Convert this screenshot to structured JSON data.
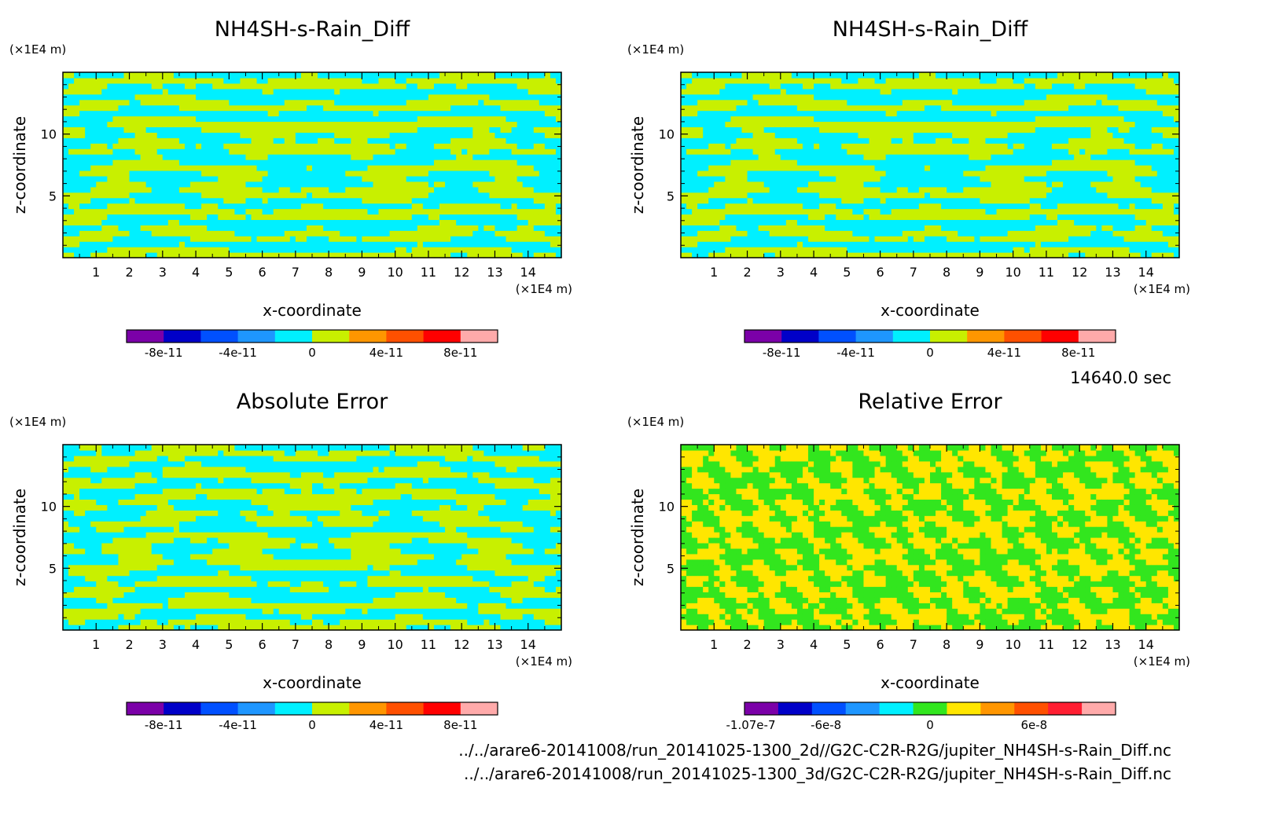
{
  "time_label": "14640.0 sec",
  "file_paths": [
    "../../arare6-20141008/run_20141025-1300_2d//G2C-C2R-R2G/jupiter_NH4SH-s-Rain_Diff.nc",
    "../../arare6-20141008/run_20141025-1300_3d/G2C-C2R-R2G/jupiter_NH4SH-s-Rain_Diff.nc"
  ],
  "chart_data": [
    {
      "type": "heatmap",
      "title": "NH4SH-s-Rain_Diff",
      "xlabel": "x-coordinate",
      "ylabel": "z-coordinate",
      "x_unit": "(×1E4 m)",
      "y_unit": "(×1E4 m)",
      "xlim": [
        0,
        15
      ],
      "ylim": [
        0,
        15
      ],
      "x_ticks": [
        1,
        2,
        3,
        4,
        5,
        6,
        7,
        8,
        9,
        10,
        11,
        12,
        13,
        14
      ],
      "y_ticks": [
        5,
        10
      ],
      "colorbar": {
        "colors": [
          "#7b00a8",
          "#0000c8",
          "#0050ff",
          "#1e96ff",
          "#00f0ff",
          "#c8f000",
          "#ff9600",
          "#ff5000",
          "#ff0000",
          "#ffaaaa"
        ],
        "tick_labels": [
          "-8e-11",
          "-4e-11",
          "0",
          "4e-11",
          "8e-11"
        ],
        "tick_values": [
          -8e-11,
          -4e-11,
          0,
          4e-11,
          8e-11
        ],
        "range": [
          -1e-10,
          1e-10
        ]
      },
      "field_colors": [
        "#00f0ff",
        "#c8f000"
      ]
    },
    {
      "type": "heatmap",
      "title": "NH4SH-s-Rain_Diff",
      "xlabel": "x-coordinate",
      "ylabel": "z-coordinate",
      "x_unit": "(×1E4 m)",
      "y_unit": "(×1E4 m)",
      "xlim": [
        0,
        15
      ],
      "ylim": [
        0,
        15
      ],
      "x_ticks": [
        1,
        2,
        3,
        4,
        5,
        6,
        7,
        8,
        9,
        10,
        11,
        12,
        13,
        14
      ],
      "y_ticks": [
        5,
        10
      ],
      "colorbar": {
        "colors": [
          "#7b00a8",
          "#0000c8",
          "#0050ff",
          "#1e96ff",
          "#00f0ff",
          "#c8f000",
          "#ff9600",
          "#ff5000",
          "#ff0000",
          "#ffaaaa"
        ],
        "tick_labels": [
          "-8e-11",
          "-4e-11",
          "0",
          "4e-11",
          "8e-11"
        ],
        "tick_values": [
          -8e-11,
          -4e-11,
          0,
          4e-11,
          8e-11
        ],
        "range": [
          -1e-10,
          1e-10
        ]
      },
      "field_colors": [
        "#00f0ff",
        "#c8f000"
      ]
    },
    {
      "type": "heatmap",
      "title": "Absolute Error",
      "xlabel": "x-coordinate",
      "ylabel": "z-coordinate",
      "x_unit": "(×1E4 m)",
      "y_unit": "(×1E4 m)",
      "xlim": [
        0,
        15
      ],
      "ylim": [
        0,
        15
      ],
      "x_ticks": [
        1,
        2,
        3,
        4,
        5,
        6,
        7,
        8,
        9,
        10,
        11,
        12,
        13,
        14
      ],
      "y_ticks": [
        5,
        10
      ],
      "colorbar": {
        "colors": [
          "#7b00a8",
          "#0000c8",
          "#0050ff",
          "#1e96ff",
          "#00f0ff",
          "#c8f000",
          "#ff9600",
          "#ff5000",
          "#ff0000",
          "#ffaaaa"
        ],
        "tick_labels": [
          "-8e-11",
          "-4e-11",
          "0",
          "4e-11",
          "8e-11"
        ],
        "tick_values": [
          -8e-11,
          -4e-11,
          0,
          4e-11,
          8e-11
        ],
        "range": [
          -1e-10,
          1e-10
        ]
      },
      "field_colors": [
        "#00f0ff",
        "#c8f000"
      ]
    },
    {
      "type": "heatmap",
      "title": "Relative Error",
      "xlabel": "x-coordinate",
      "ylabel": "z-coordinate",
      "x_unit": "(×1E4 m)",
      "y_unit": "(×1E4 m)",
      "xlim": [
        0,
        15
      ],
      "ylim": [
        0,
        15
      ],
      "x_ticks": [
        1,
        2,
        3,
        4,
        5,
        6,
        7,
        8,
        9,
        10,
        11,
        12,
        13,
        14
      ],
      "y_ticks": [
        5,
        10
      ],
      "colorbar": {
        "colors": [
          "#7b00a8",
          "#0000c8",
          "#0050ff",
          "#1e96ff",
          "#00f0ff",
          "#32e61e",
          "#ffe600",
          "#ff9600",
          "#ff5000",
          "#ff1e32",
          "#ffaaaa"
        ],
        "tick_labels": [
          "-1.07e-7",
          "-6e-8",
          "0",
          "6e-8"
        ],
        "tick_values": [
          -1.07e-07,
          -6e-08,
          0,
          6e-08
        ],
        "range": [
          -1.07e-07,
          1.07e-07
        ]
      },
      "field_colors": [
        "#32e61e",
        "#ffe600"
      ]
    }
  ]
}
